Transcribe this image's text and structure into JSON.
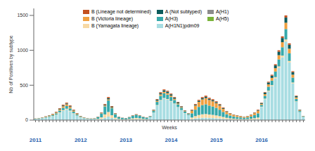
{
  "chart_data": {
    "type": "bar",
    "stacked": true,
    "grid": false,
    "legend": "top",
    "y_label": "Nb of Positives by subtype",
    "x_label": "Weeks",
    "categories": [
      "2011",
      null,
      null,
      null,
      null,
      null,
      null,
      null,
      null,
      null,
      null,
      null,
      null,
      "2012",
      null,
      null,
      null,
      null,
      null,
      null,
      null,
      null,
      null,
      null,
      null,
      null,
      "2013",
      null,
      null,
      null,
      null,
      null,
      null,
      null,
      null,
      null,
      null,
      null,
      null,
      "2014",
      null,
      null,
      null,
      null,
      null,
      null,
      null,
      null,
      null,
      null,
      null,
      null,
      "2015",
      null,
      null,
      null,
      null,
      null,
      null,
      null,
      null,
      null,
      null,
      null,
      null,
      "2016",
      null,
      null,
      null,
      null,
      null,
      null,
      null,
      null,
      null,
      null,
      null,
      null
    ],
    "ylim": [
      0,
      1600
    ],
    "yticks": [
      0,
      500,
      1000,
      1500
    ],
    "series": [
      {
        "name": "B (Lineage not determined)",
        "color": "#c4511f",
        "values": [
          1,
          1,
          2,
          3,
          3,
          4,
          6,
          8,
          11,
          12,
          11,
          7,
          5,
          3,
          2,
          1,
          1,
          2,
          3,
          6,
          12,
          17,
          10,
          5,
          3,
          2,
          2,
          2,
          4,
          4,
          4,
          3,
          2,
          2,
          4,
          9,
          12,
          13,
          13,
          11,
          10,
          8,
          6,
          4,
          3,
          7,
          11,
          14,
          16,
          17,
          16,
          15,
          13,
          11,
          9,
          6,
          5,
          4,
          3,
          3,
          2,
          3,
          4,
          5,
          7,
          5,
          8,
          11,
          13,
          16,
          20,
          24,
          30,
          22,
          14,
          7,
          3,
          1
        ]
      },
      {
        "name": "A (Not subtyped)",
        "color": "#0b5b5c",
        "values": [
          1,
          2,
          2,
          3,
          4,
          5,
          6,
          8,
          11,
          12,
          10,
          7,
          5,
          3,
          2,
          1,
          1,
          1,
          2,
          5,
          11,
          16,
          10,
          5,
          2,
          2,
          1,
          2,
          3,
          4,
          3,
          2,
          2,
          3,
          8,
          15,
          20,
          22,
          21,
          19,
          16,
          13,
          10,
          7,
          5,
          8,
          12,
          15,
          17,
          18,
          16,
          15,
          14,
          12,
          9,
          7,
          5,
          4,
          4,
          3,
          3,
          3,
          4,
          6,
          8,
          12,
          20,
          28,
          32,
          40,
          50,
          60,
          75,
          55,
          35,
          18,
          8,
          3
        ]
      },
      {
        "name": "A(H1)",
        "color": "#8c8c8c",
        "values": [
          0,
          0,
          0,
          0,
          0,
          0,
          0,
          0,
          0,
          0,
          0,
          0,
          0,
          0,
          0,
          0,
          0,
          0,
          0,
          0,
          0,
          0,
          0,
          0,
          0,
          0,
          0,
          0,
          0,
          0,
          0,
          0,
          0,
          0,
          0,
          0,
          0,
          0,
          0,
          0,
          0,
          0,
          0,
          0,
          0,
          0,
          0,
          0,
          0,
          0,
          0,
          0,
          0,
          0,
          0,
          0,
          0,
          0,
          0,
          0,
          0,
          0,
          0,
          0,
          0,
          0,
          0,
          0,
          0,
          0,
          0,
          0,
          0,
          0,
          0,
          0,
          0,
          0
        ]
      },
      {
        "name": "B (Victoria lineage)",
        "color": "#f0a040",
        "values": [
          3,
          3,
          4,
          6,
          7,
          9,
          12,
          17,
          22,
          25,
          21,
          15,
          10,
          6,
          4,
          3,
          3,
          3,
          2,
          5,
          11,
          16,
          10,
          5,
          2,
          1,
          1,
          2,
          3,
          4,
          3,
          2,
          2,
          3,
          8,
          15,
          20,
          22,
          21,
          19,
          16,
          13,
          10,
          7,
          5,
          38,
          58,
          72,
          82,
          88,
          80,
          75,
          68,
          58,
          45,
          32,
          25,
          20,
          18,
          15,
          12,
          15,
          20,
          28,
          38,
          15,
          24,
          33,
          39,
          48,
          60,
          72,
          90,
          66,
          42,
          21,
          9,
          4
        ]
      },
      {
        "name": "A(H3)",
        "color": "#36a9ab",
        "values": [
          4,
          5,
          6,
          8,
          11,
          14,
          18,
          26,
          33,
          38,
          32,
          23,
          15,
          9,
          6,
          5,
          4,
          5,
          25,
          55,
          115,
          165,
          100,
          50,
          25,
          18,
          15,
          22,
          35,
          42,
          35,
          25,
          20,
          9,
          22,
          45,
          60,
          66,
          63,
          57,
          50,
          39,
          30,
          21,
          15,
          60,
          92,
          116,
          132,
          140,
          128,
          120,
          108,
          92,
          72,
          52,
          40,
          32,
          28,
          24,
          20,
          24,
          32,
          44,
          60,
          25,
          40,
          55,
          65,
          80,
          100,
          120,
          150,
          110,
          70,
          35,
          15,
          6
        ]
      },
      {
        "name": "A(H5)",
        "color": "#7ab43a",
        "values": [
          0,
          0,
          0,
          0,
          0,
          0,
          0,
          0,
          0,
          0,
          0,
          0,
          0,
          0,
          0,
          0,
          0,
          0,
          0,
          0,
          0,
          0,
          0,
          0,
          0,
          0,
          0,
          0,
          0,
          0,
          0,
          0,
          0,
          0,
          0,
          0,
          0,
          0,
          0,
          0,
          0,
          0,
          0,
          0,
          0,
          0,
          0,
          0,
          0,
          0,
          0,
          0,
          0,
          0,
          0,
          0,
          0,
          0,
          0,
          0,
          0,
          0,
          0,
          0,
          0,
          0,
          0,
          0,
          0,
          0,
          0,
          0,
          0,
          0,
          0,
          0,
          0,
          0
        ]
      },
      {
        "name": "B (Yamagata lineage)",
        "color": "#f7d9a4",
        "values": [
          1,
          1,
          2,
          2,
          3,
          4,
          6,
          9,
          11,
          13,
          10,
          8,
          5,
          3,
          2,
          2,
          1,
          1,
          10,
          22,
          46,
          66,
          40,
          20,
          10,
          7,
          6,
          10,
          14,
          18,
          14,
          10,
          8,
          1,
          3,
          6,
          8,
          9,
          8,
          8,
          7,
          5,
          4,
          3,
          2,
          22,
          34,
          44,
          50,
          52,
          48,
          45,
          40,
          34,
          27,
          20,
          15,
          12,
          10,
          9,
          8,
          9,
          12,
          16,
          22,
          5,
          8,
          11,
          13,
          16,
          20,
          24,
          30,
          22,
          14,
          7,
          3,
          1
        ]
      },
      {
        "name": "A(H1N1)pdm09",
        "color": "#a8dde2",
        "values": [
          15,
          18,
          24,
          33,
          42,
          54,
          72,
          102,
          132,
          150,
          126,
          90,
          60,
          36,
          24,
          18,
          15,
          18,
          8,
          17,
          35,
          50,
          30,
          15,
          8,
          5,
          5,
          7,
          11,
          13,
          11,
          8,
          6,
          42,
          105,
          210,
          280,
          308,
          294,
          266,
          231,
          182,
          140,
          98,
          70,
          15,
          23,
          29,
          33,
          35,
          32,
          30,
          27,
          23,
          18,
          13,
          10,
          8,
          7,
          6,
          5,
          6,
          8,
          11,
          15,
          188,
          300,
          412,
          488,
          600,
          750,
          900,
          1125,
          825,
          525,
          262,
          112,
          45
        ]
      }
    ]
  }
}
